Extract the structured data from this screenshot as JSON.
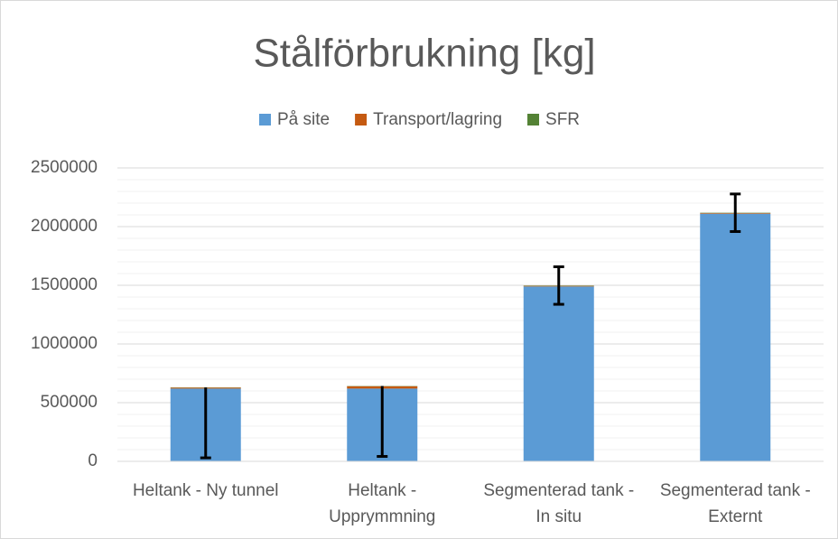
{
  "chart_data": {
    "type": "stacked_bar",
    "title": "Stålförbrukning [kg]",
    "categories": [
      [
        "Heltank - Ny tunnel"
      ],
      [
        "Heltank -",
        "Upprymmning"
      ],
      [
        "Segmenterad tank -",
        "In situ"
      ],
      [
        "Segmenterad tank -",
        "Externt"
      ]
    ],
    "series": [
      {
        "name": "På site",
        "color": "#5b9bd5",
        "values": [
          620000,
          620000,
          1490000,
          2110000
        ]
      },
      {
        "name": "Transport/lagring",
        "color": "#c55a11",
        "values": [
          8000,
          20000,
          5000,
          5000
        ]
      },
      {
        "name": "SFR",
        "color": "#548235",
        "values": [
          2000,
          2000,
          3000,
          3000
        ]
      }
    ],
    "error_minus": [
      600000,
      600000,
      160000,
      160000
    ],
    "error_plus": [
      0,
      0,
      160000,
      160000
    ],
    "ylim": [
      0,
      2500000
    ],
    "yticks": [
      0,
      500000,
      1000000,
      1500000,
      2000000,
      2500000
    ],
    "minor_grid_step": 100000,
    "grid": true,
    "legend": "top"
  }
}
